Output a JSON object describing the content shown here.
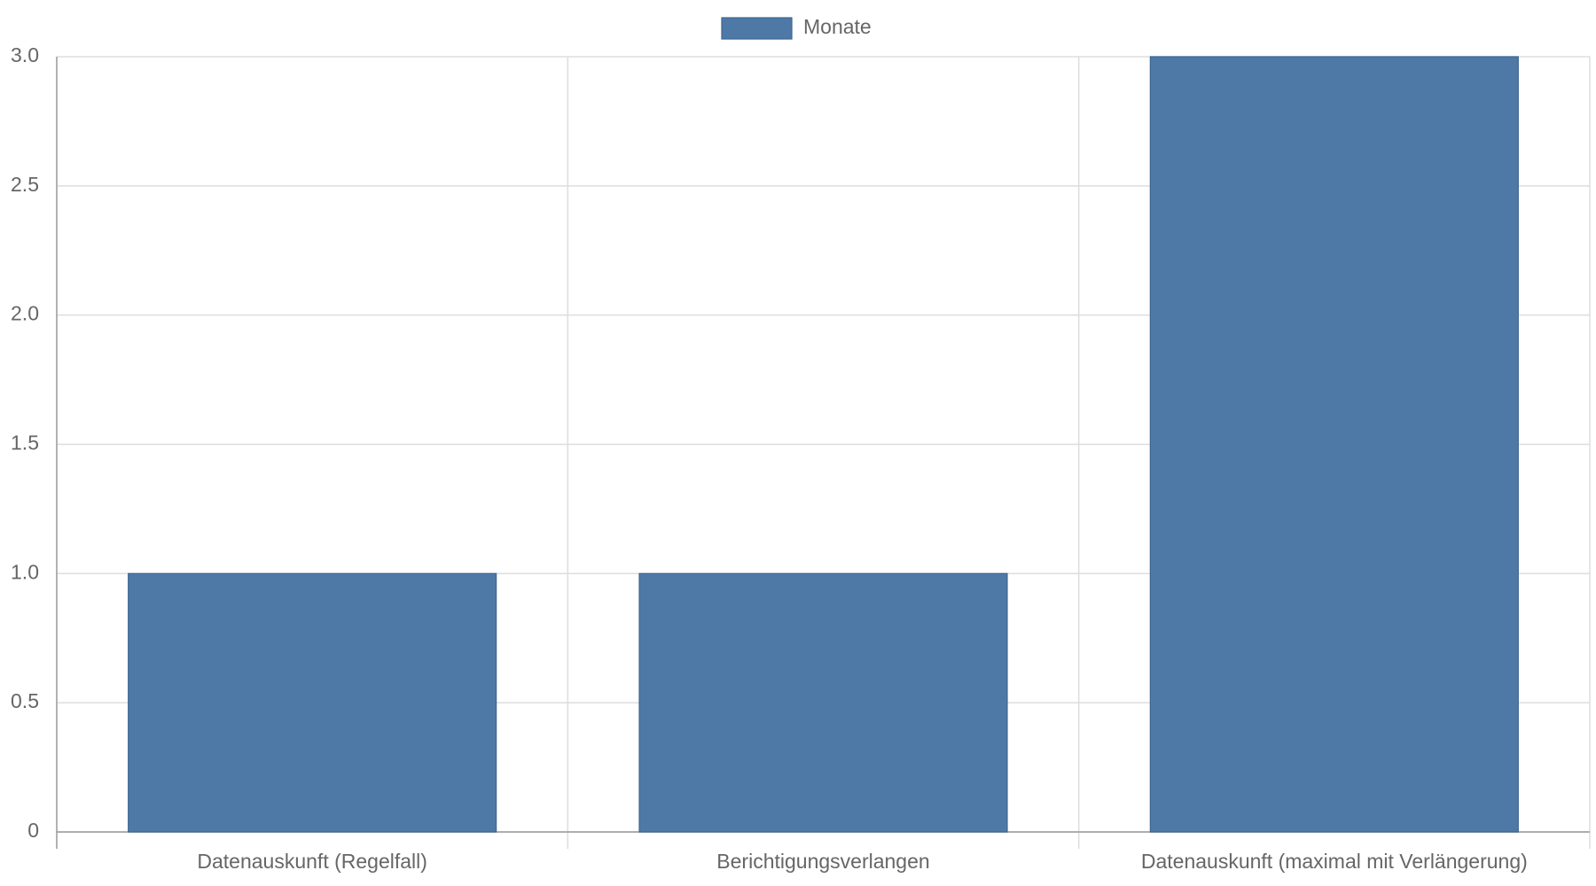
{
  "chart_data": {
    "type": "bar",
    "legend": "Monate",
    "categories": [
      "Datenauskunft (Regelfall)",
      "Berichtigungsverlangen",
      "Datenauskunft (maximal mit Verlängerung)"
    ],
    "values": [
      1,
      1,
      3
    ],
    "color": "#4e79a7",
    "ylim": [
      0,
      3
    ],
    "yticks": [
      0,
      0.5,
      {
        "value": 1,
        "label": "1.0"
      },
      1.5,
      {
        "value": 2,
        "label": "2.0"
      },
      2.5,
      {
        "value": 3,
        "label": "3.0"
      }
    ],
    "grid": true
  }
}
